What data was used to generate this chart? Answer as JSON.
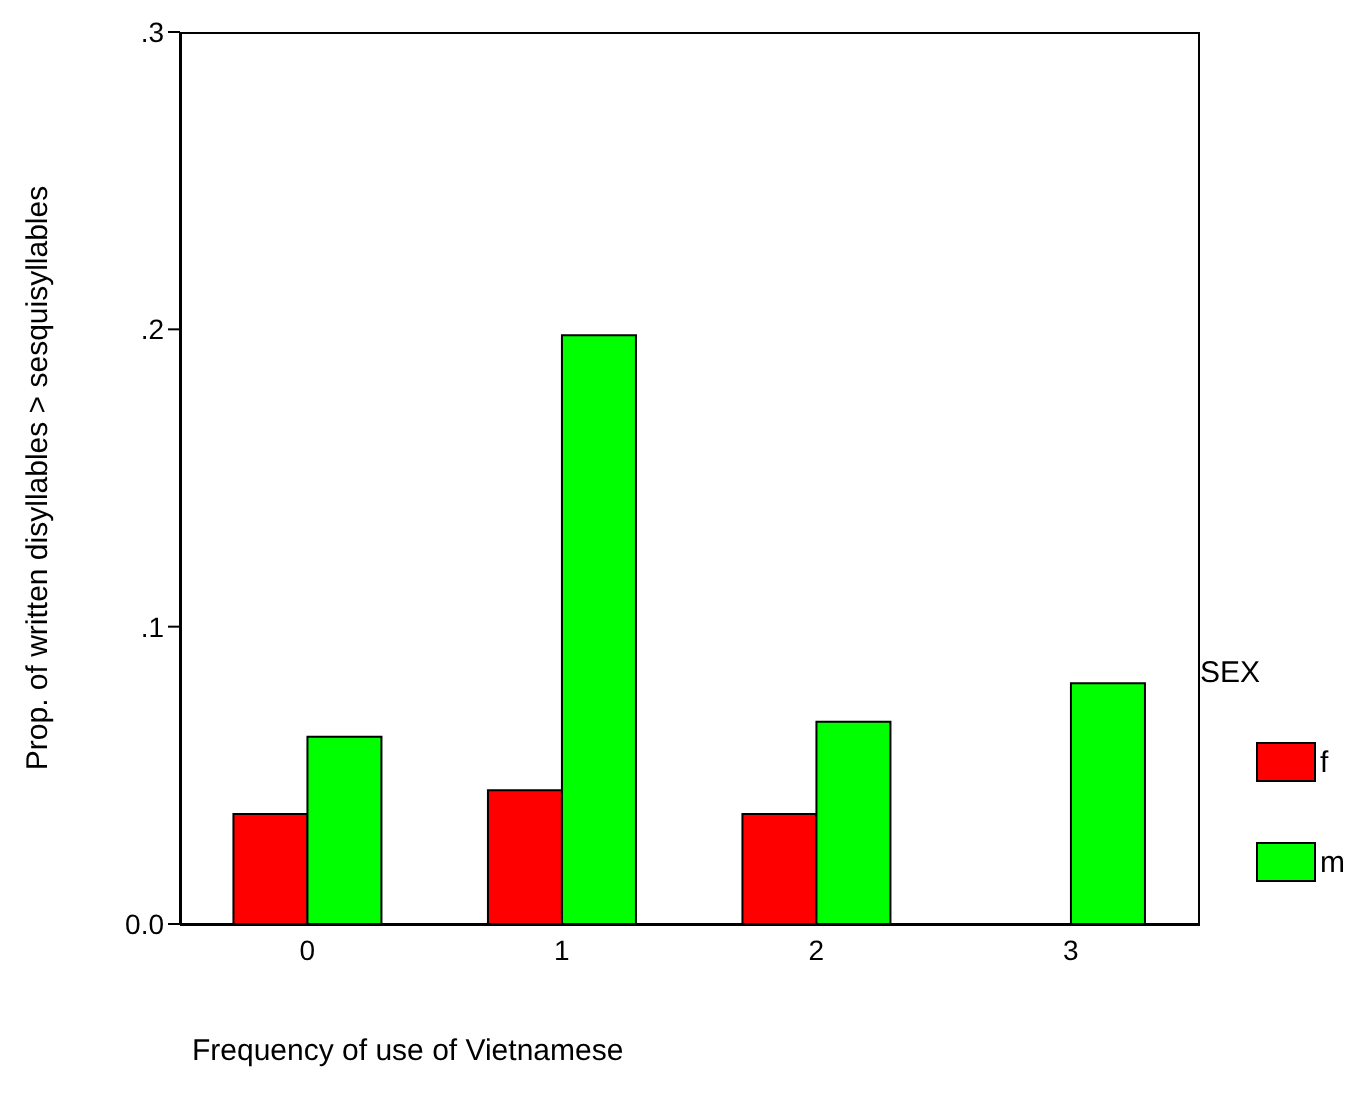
{
  "chart_data": {
    "type": "bar",
    "xlabel": "Frequency of use of Vietnamese",
    "ylabel": "Prop. of written disyllables > sesquisyllables",
    "legend_title": "SEX",
    "categories": [
      "0",
      "1",
      "2",
      "3"
    ],
    "series": [
      {
        "name": "f",
        "color": "#ff0000",
        "values": [
          0.037,
          0.045,
          0.037,
          null
        ]
      },
      {
        "name": "m",
        "color": "#00ff00",
        "values": [
          0.063,
          0.198,
          0.068,
          0.081
        ]
      }
    ],
    "ylim": [
      0,
      0.3
    ],
    "yticks": [
      {
        "value": 0,
        "label": "0.0"
      },
      {
        "value": 0.1,
        "label": ".1"
      },
      {
        "value": 0.2,
        "label": ".2"
      },
      {
        "value": 0.3,
        "label": ".3"
      }
    ],
    "legend": "right"
  }
}
